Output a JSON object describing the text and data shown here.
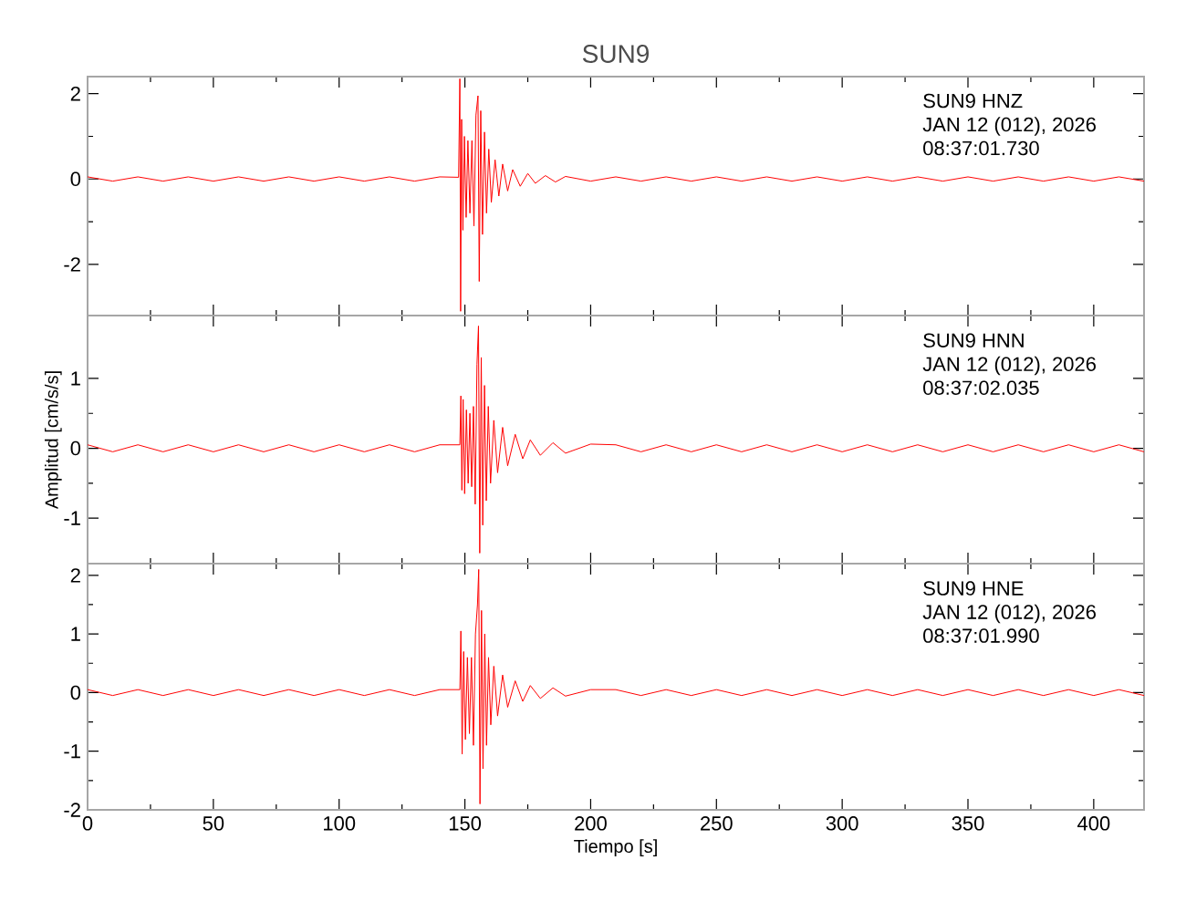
{
  "chart_data": [
    {
      "type": "line",
      "title": "SUN9",
      "xlim": [
        0,
        420
      ],
      "xticks": [
        0,
        50,
        100,
        150,
        200,
        250,
        300,
        350,
        400
      ],
      "ylim": [
        -3.2,
        2.4
      ],
      "yticks": [
        -2,
        0,
        2
      ],
      "tick_labels": "y",
      "annotations": [
        "SUN9   HNZ",
        "JAN 12 (012), 2026",
        "08:37:01.730"
      ],
      "x": [
        0,
        10,
        20,
        30,
        40,
        50,
        60,
        70,
        80,
        90,
        100,
        110,
        120,
        130,
        140,
        147.5,
        148,
        148.3,
        148.7,
        149.2,
        149.8,
        150.5,
        151.2,
        152,
        152.8,
        153.6,
        154.4,
        155.2,
        155.7,
        156.3,
        157,
        157.8,
        158.6,
        159.5,
        160.5,
        162,
        163.5,
        165,
        167,
        169,
        172,
        175,
        178,
        182,
        186,
        190,
        200,
        210,
        220,
        230,
        240,
        250,
        260,
        270,
        280,
        290,
        300,
        310,
        320,
        330,
        340,
        350,
        360,
        370,
        380,
        390,
        400,
        410,
        420
      ],
      "series": [
        {
          "color": "#ff0000",
          "values": [
            0.05,
            -0.05,
            0.05,
            -0.05,
            0.05,
            -0.05,
            0.05,
            -0.05,
            0.05,
            -0.05,
            0.05,
            -0.05,
            0.05,
            -0.05,
            0.05,
            0.04,
            2.35,
            -3.1,
            1.4,
            -1.2,
            1.0,
            -0.9,
            0.9,
            -0.8,
            0.9,
            -1.1,
            1.5,
            1.95,
            -2.4,
            1.6,
            -1.3,
            1.1,
            -0.8,
            0.7,
            -0.55,
            0.45,
            -0.4,
            0.35,
            -0.28,
            0.22,
            -0.17,
            0.13,
            -0.1,
            0.08,
            -0.07,
            0.06,
            -0.05,
            0.05,
            -0.05,
            0.05,
            -0.05,
            0.05,
            -0.05,
            0.05,
            -0.05,
            0.05,
            -0.05,
            0.05,
            -0.05,
            0.05,
            -0.05,
            0.05,
            -0.05,
            0.05,
            -0.05,
            0.05,
            -0.05,
            0.05,
            -0.05
          ]
        }
      ]
    },
    {
      "type": "line",
      "ylabel": "Amplitud [cm/s/s]",
      "xlim": [
        0,
        420
      ],
      "xticks": [
        0,
        50,
        100,
        150,
        200,
        250,
        300,
        350,
        400
      ],
      "ylim": [
        -1.65,
        1.9
      ],
      "yticks": [
        -1,
        0,
        1
      ],
      "tick_labels": "y",
      "annotations": [
        "SUN9   HNN",
        "JAN 12 (012), 2026",
        "08:37:02.035"
      ],
      "x": [
        0,
        10,
        20,
        30,
        40,
        50,
        60,
        70,
        80,
        90,
        100,
        110,
        120,
        130,
        140,
        148,
        148.4,
        148.8,
        149.3,
        149.9,
        150.6,
        151.3,
        152,
        152.7,
        153.4,
        154.1,
        154.8,
        155.4,
        155.9,
        156.5,
        157.1,
        157.8,
        158.5,
        159.3,
        160.2,
        161.5,
        163,
        165,
        167,
        170,
        173,
        176,
        180,
        185,
        190,
        200,
        210,
        220,
        230,
        240,
        250,
        260,
        270,
        280,
        290,
        300,
        310,
        320,
        330,
        340,
        350,
        360,
        370,
        380,
        390,
        400,
        410,
        420
      ],
      "series": [
        {
          "color": "#ff0000",
          "values": [
            0.05,
            -0.05,
            0.05,
            -0.05,
            0.05,
            -0.05,
            0.05,
            -0.05,
            0.05,
            -0.05,
            0.05,
            -0.05,
            0.05,
            -0.05,
            0.05,
            0.05,
            0.75,
            -0.6,
            0.7,
            -0.65,
            0.55,
            -0.5,
            0.5,
            -0.55,
            0.6,
            -0.8,
            1.2,
            1.75,
            -1.5,
            1.3,
            -1.1,
            0.9,
            -0.75,
            0.6,
            -0.5,
            0.4,
            -0.35,
            0.3,
            -0.25,
            0.2,
            -0.15,
            0.12,
            -0.1,
            0.08,
            -0.07,
            0.06,
            0.05,
            -0.05,
            0.05,
            -0.05,
            0.05,
            -0.05,
            0.05,
            -0.05,
            0.05,
            -0.05,
            0.05,
            -0.05,
            0.05,
            -0.05,
            0.05,
            -0.05,
            0.05,
            -0.05,
            0.05,
            -0.05,
            0.05,
            -0.05
          ]
        }
      ]
    },
    {
      "type": "line",
      "xlabel": "Tiempo [s]",
      "xlim": [
        0,
        420
      ],
      "xticks": [
        0,
        50,
        100,
        150,
        200,
        250,
        300,
        350,
        400
      ],
      "ylim": [
        -2,
        2.2
      ],
      "yticks": [
        -2,
        -1,
        0,
        1,
        2
      ],
      "annotations": [
        "SUN9   HNE",
        "JAN 12 (012), 2026",
        "08:37:01.990"
      ],
      "x": [
        0,
        10,
        20,
        30,
        40,
        50,
        60,
        70,
        80,
        90,
        100,
        110,
        120,
        130,
        140,
        148,
        148.4,
        148.9,
        149.5,
        150.2,
        151,
        151.8,
        152.6,
        153.4,
        154.2,
        155,
        155.5,
        156,
        156.6,
        157.2,
        157.9,
        158.6,
        159.4,
        160.3,
        161.5,
        163,
        165,
        167,
        170,
        173,
        176,
        180,
        185,
        190,
        200,
        210,
        220,
        230,
        240,
        250,
        260,
        270,
        280,
        290,
        300,
        310,
        320,
        330,
        340,
        350,
        360,
        370,
        380,
        390,
        400,
        410,
        420
      ],
      "series": [
        {
          "color": "#ff0000",
          "values": [
            0.05,
            -0.05,
            0.05,
            -0.05,
            0.05,
            -0.05,
            0.05,
            -0.05,
            0.05,
            -0.05,
            0.05,
            -0.05,
            0.05,
            -0.05,
            0.05,
            0.05,
            1.05,
            -1.05,
            0.7,
            -0.8,
            0.6,
            -0.7,
            0.6,
            -0.9,
            1.0,
            1.5,
            2.1,
            -1.9,
            1.4,
            -1.3,
            1.0,
            -0.9,
            0.6,
            -0.55,
            0.45,
            -0.4,
            0.3,
            -0.25,
            0.2,
            -0.15,
            0.12,
            -0.1,
            0.08,
            -0.06,
            0.05,
            0.05,
            -0.05,
            0.05,
            -0.05,
            0.05,
            -0.05,
            0.05,
            -0.05,
            0.05,
            -0.05,
            0.05,
            -0.05,
            0.05,
            -0.05,
            0.05,
            -0.05,
            0.05,
            -0.05,
            0.05,
            -0.05,
            0.05,
            -0.05
          ]
        }
      ]
    }
  ]
}
